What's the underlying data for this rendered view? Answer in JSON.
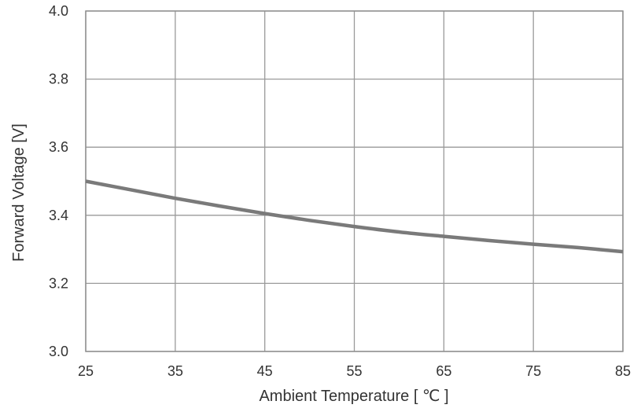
{
  "chart_data": {
    "type": "line",
    "title": "",
    "xlabel": "Ambient Temperature [ ℃ ]",
    "ylabel": "Forward Voltage [V]",
    "xlim": [
      25,
      85
    ],
    "ylim": [
      3.0,
      4.0
    ],
    "xticks": [
      25,
      35,
      45,
      55,
      65,
      75,
      85
    ],
    "yticks": [
      3.0,
      3.2,
      3.4,
      3.6,
      3.8,
      4.0
    ],
    "xtick_labels": [
      "25",
      "35",
      "45",
      "55",
      "65",
      "75",
      "85"
    ],
    "ytick_labels": [
      "3.0",
      "3.2",
      "3.4",
      "3.6",
      "3.8",
      "4.0"
    ],
    "grid": true,
    "legend": "none",
    "series": [
      {
        "color": "#7a7a7a",
        "x": [
          25,
          30,
          35,
          40,
          45,
          50,
          55,
          60,
          65,
          70,
          75,
          80,
          85
        ],
        "y": [
          3.5,
          3.475,
          3.45,
          3.427,
          3.405,
          3.385,
          3.367,
          3.351,
          3.338,
          3.326,
          3.315,
          3.305,
          3.293
        ]
      }
    ]
  }
}
